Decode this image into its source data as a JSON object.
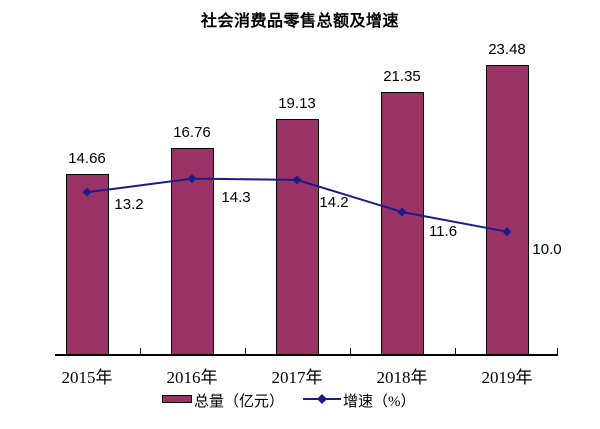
{
  "title": "社会消费品零售总额及增速",
  "chart_data": {
    "type": "bar+line",
    "title": "社会消费品零售总额及增速",
    "categories": [
      "2015年",
      "2016年",
      "2017年",
      "2018年",
      "2019年"
    ],
    "series": [
      {
        "name": "总量（亿元）",
        "type": "bar",
        "values": [
          14.66,
          16.76,
          19.13,
          21.35,
          23.48
        ],
        "labels": [
          "14.66",
          "16.76",
          "19.13",
          "21.35",
          "23.48"
        ],
        "color": "#993366"
      },
      {
        "name": "增速（%）",
        "type": "line",
        "marker": "diamond",
        "values": [
          13.2,
          14.3,
          14.2,
          11.6,
          10.0
        ],
        "labels": [
          "13.2",
          "14.3",
          "14.2",
          "11.6",
          "10.0"
        ],
        "color": "#1b1b8a"
      }
    ],
    "xlabel": "",
    "ylabel": "",
    "ylim": [
      0,
      25
    ],
    "grid": false,
    "y_axis_visible": false,
    "x_axis_color": "#000000",
    "legend_position": "bottom",
    "background": "#ffffff"
  },
  "legend": {
    "items": [
      {
        "label": "总量（亿元）",
        "swatch": "bar",
        "color": "#993366"
      },
      {
        "label": "增速（%）",
        "swatch": "line-diamond",
        "color": "#1b1b8a"
      }
    ]
  }
}
